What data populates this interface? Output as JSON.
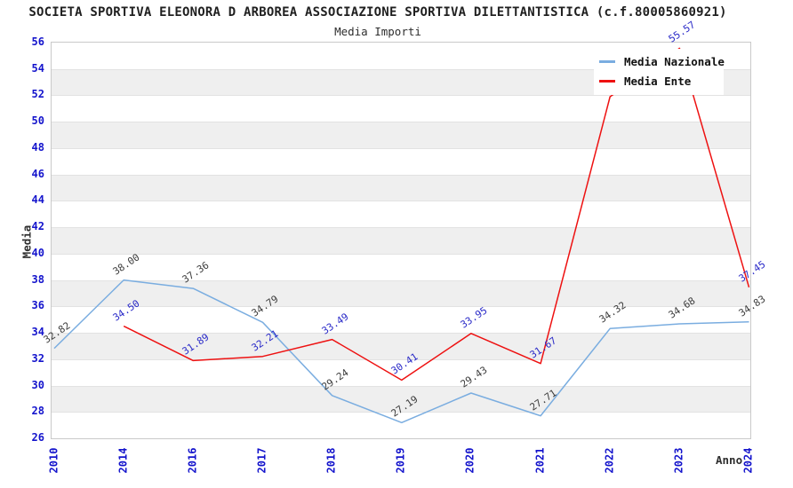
{
  "title": "SOCIETA SPORTIVA ELEONORA D ARBOREA ASSOCIAZIONE SPORTIVA DILETTANTISTICA (c.f.80005860921)",
  "subtitle": "Media Importi",
  "axes": {
    "y_label": "Media",
    "x_label": "Anno",
    "y_ticks": [
      56,
      54,
      52,
      50,
      48,
      46,
      44,
      42,
      40,
      38,
      36,
      34,
      32,
      30,
      28,
      26
    ],
    "tick_color": "#1414cc"
  },
  "legend": {
    "items": [
      {
        "label": "Media Nazionale",
        "color": "#7aade0"
      },
      {
        "label": "Media Ente",
        "color": "#ee1111"
      }
    ],
    "position": "top-right"
  },
  "colors": {
    "band_gray": "#efefef",
    "gridline": "#e2e2e2",
    "plot_border": "#c9c9c9"
  },
  "chart_data": {
    "type": "line",
    "title": "Media Importi",
    "categories": [
      "2010",
      "2014",
      "2016",
      "2017",
      "2018",
      "2019",
      "2020",
      "2021",
      "2022",
      "2023",
      "2024"
    ],
    "series": [
      {
        "name": "Media Nazionale",
        "color": "#7aade0",
        "label_color": "#3c3c3c",
        "values": [
          32.82,
          38.0,
          37.36,
          34.79,
          29.24,
          27.19,
          29.43,
          27.71,
          34.32,
          34.68,
          34.83
        ]
      },
      {
        "name": "Media Ente",
        "color": "#ee1111",
        "label_color": "#2a2ac8",
        "values": [
          null,
          34.5,
          31.89,
          32.21,
          33.49,
          30.41,
          33.95,
          31.67,
          51.9,
          55.57,
          37.45
        ],
        "label_hidden_indices": [
          8
        ]
      }
    ],
    "ylim": [
      26,
      56
    ],
    "xlabel": "Anno",
    "ylabel": "Media",
    "grid": "horizontal-bands-alternating",
    "legend_position": "top-right"
  }
}
